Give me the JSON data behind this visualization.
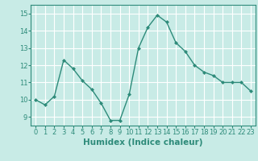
{
  "x": [
    0,
    1,
    2,
    3,
    4,
    5,
    6,
    7,
    8,
    9,
    10,
    11,
    12,
    13,
    14,
    15,
    16,
    17,
    18,
    19,
    20,
    21,
    22,
    23
  ],
  "y": [
    10.0,
    9.7,
    10.2,
    12.3,
    11.8,
    11.1,
    10.6,
    9.8,
    8.8,
    8.8,
    10.3,
    13.0,
    14.2,
    14.9,
    14.5,
    13.3,
    12.8,
    12.0,
    11.6,
    11.4,
    11.0,
    11.0,
    11.0,
    10.5
  ],
  "xlim": [
    -0.5,
    23.5
  ],
  "ylim": [
    8.5,
    15.5
  ],
  "yticks": [
    9,
    10,
    11,
    12,
    13,
    14,
    15
  ],
  "xticks": [
    0,
    1,
    2,
    3,
    4,
    5,
    6,
    7,
    8,
    9,
    10,
    11,
    12,
    13,
    14,
    15,
    16,
    17,
    18,
    19,
    20,
    21,
    22,
    23
  ],
  "xlabel": "Humidex (Indice chaleur)",
  "line_color": "#2e8b7a",
  "marker": "D",
  "marker_size": 2.0,
  "bg_color": "#c8ebe6",
  "grid_color": "#ffffff",
  "tick_label_fontsize": 6,
  "xlabel_fontsize": 7.5,
  "line_width": 1.0,
  "linestyle": "-"
}
